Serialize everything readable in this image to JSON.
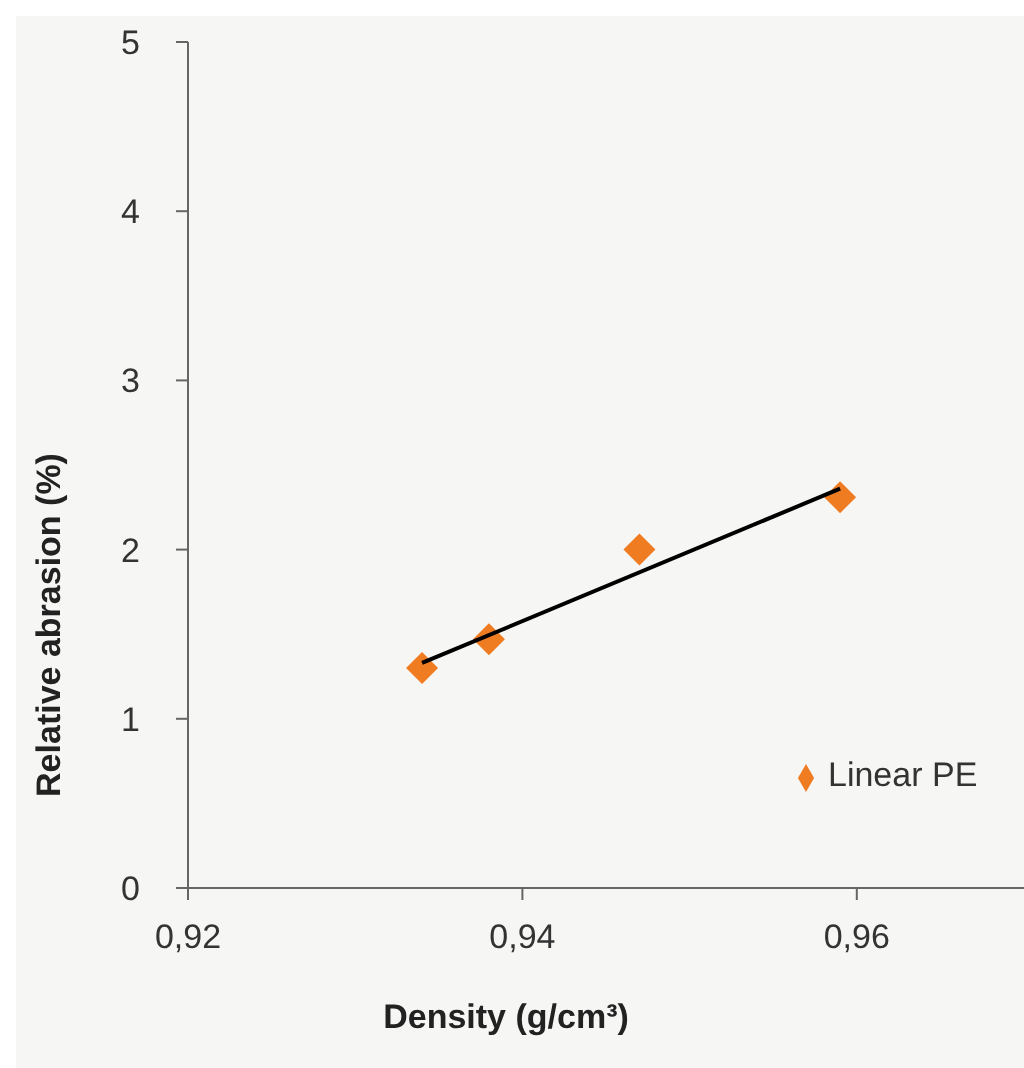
{
  "chart_data": {
    "type": "scatter",
    "xlabel": "Density (g/cm³)",
    "ylabel": "Relative abrasion (%)",
    "xlim": [
      0.92,
      0.97
    ],
    "xticks": [
      {
        "value": 0.92,
        "label": "0,92"
      },
      {
        "value": 0.94,
        "label": "0,94"
      },
      {
        "value": 0.96,
        "label": "0,96"
      }
    ],
    "ylim": [
      0,
      5
    ],
    "yticks": [
      0,
      1,
      2,
      3,
      4,
      5
    ],
    "series": [
      {
        "name": "Linear PE",
        "color": "#f07c22",
        "x": [
          0.934,
          0.938,
          0.947,
          0.959
        ],
        "values": [
          1.3,
          1.47,
          2.0,
          2.31
        ],
        "marker": "diamond"
      },
      {
        "type": "line",
        "color": "#000000",
        "x": [
          0.934,
          0.959
        ],
        "values": [
          1.33,
          2.36
        ],
        "marker": "none"
      }
    ],
    "legend": "right",
    "grid": false
  }
}
